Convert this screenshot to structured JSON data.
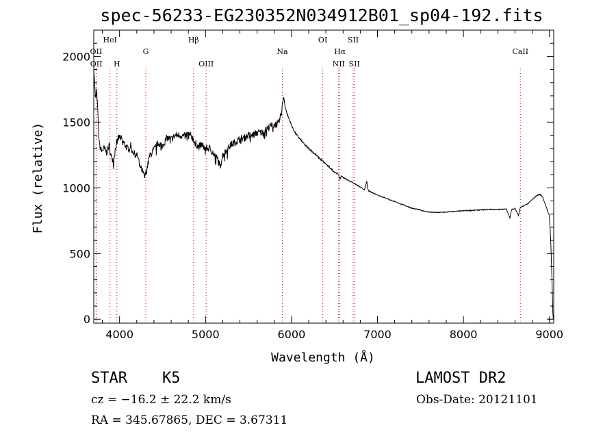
{
  "title": "spec-56233-EG230352N034912B01_sp04-192.fits",
  "info": {
    "class": "STAR",
    "subclass": "K5",
    "survey": "LAMOST DR2",
    "cz": "cz = −16.2 ± 22.2 km/s",
    "obs_date": "Obs-Date: 20121101",
    "radec": "RA = 345.67865, DEC =   3.67311"
  },
  "chart_data": {
    "type": "line",
    "xlabel": "Wavelength (Å)",
    "ylabel": "Flux (relative)",
    "xlim": [
      3700,
      9050
    ],
    "ylim": [
      -30,
      2200
    ],
    "xticks": [
      4000,
      5000,
      6000,
      7000,
      8000,
      9000
    ],
    "yticks": [
      0,
      500,
      1000,
      1500,
      2000
    ],
    "grid": false,
    "line_color": "#000000",
    "marker_color": "#cc0000",
    "lines": [
      {
        "label": "OII",
        "x": 3727,
        "row": "upper"
      },
      {
        "label": "OII",
        "x": 3729,
        "row": "lower"
      },
      {
        "label": "HeI",
        "x": 3889,
        "row": "top"
      },
      {
        "label": "H",
        "x": 3969,
        "row": "lower"
      },
      {
        "label": "G",
        "x": 4305,
        "row": "upper"
      },
      {
        "label": "Hβ",
        "x": 4861,
        "row": "top"
      },
      {
        "label": "OIII",
        "x": 5007,
        "row": "lower"
      },
      {
        "label": "Na",
        "x": 5893,
        "row": "upper"
      },
      {
        "label": "OI",
        "x": 6364,
        "row": "top"
      },
      {
        "label": "Hα",
        "x": 6563,
        "row": "upper"
      },
      {
        "label": "NII",
        "x": 6548,
        "row": "lower"
      },
      {
        "label": "SII",
        "x": 6717,
        "row": "top"
      },
      {
        "label": "SII",
        "x": 6731,
        "row": "lower"
      },
      {
        "label": "CaII",
        "x": 8662,
        "row": "upper"
      }
    ],
    "anchors": [
      [
        3700,
        1920
      ],
      [
        3710,
        1780
      ],
      [
        3720,
        1680
      ],
      [
        3735,
        1730
      ],
      [
        3745,
        1600
      ],
      [
        3755,
        1450
      ],
      [
        3765,
        1330
      ],
      [
        3790,
        1280
      ],
      [
        3820,
        1300
      ],
      [
        3850,
        1270
      ],
      [
        3880,
        1320
      ],
      [
        3900,
        1240
      ],
      [
        3930,
        1210
      ],
      [
        3960,
        1330
      ],
      [
        3985,
        1380
      ],
      [
        4010,
        1390
      ],
      [
        4050,
        1340
      ],
      [
        4090,
        1300
      ],
      [
        4130,
        1320
      ],
      [
        4170,
        1260
      ],
      [
        4210,
        1240
      ],
      [
        4250,
        1150
      ],
      [
        4290,
        1080
      ],
      [
        4310,
        1120
      ],
      [
        4350,
        1240
      ],
      [
        4400,
        1290
      ],
      [
        4450,
        1340
      ],
      [
        4500,
        1320
      ],
      [
        4550,
        1380
      ],
      [
        4600,
        1370
      ],
      [
        4650,
        1400
      ],
      [
        4700,
        1400
      ],
      [
        4750,
        1390
      ],
      [
        4800,
        1410
      ],
      [
        4850,
        1380
      ],
      [
        4880,
        1340
      ],
      [
        4920,
        1310
      ],
      [
        4960,
        1330
      ],
      [
        5000,
        1300
      ],
      [
        5050,
        1300
      ],
      [
        5100,
        1250
      ],
      [
        5140,
        1220
      ],
      [
        5170,
        1160
      ],
      [
        5200,
        1250
      ],
      [
        5250,
        1290
      ],
      [
        5300,
        1330
      ],
      [
        5350,
        1350
      ],
      [
        5400,
        1370
      ],
      [
        5450,
        1380
      ],
      [
        5500,
        1400
      ],
      [
        5550,
        1400
      ],
      [
        5600,
        1420
      ],
      [
        5650,
        1420
      ],
      [
        5700,
        1440
      ],
      [
        5750,
        1470
      ],
      [
        5800,
        1480
      ],
      [
        5850,
        1490
      ],
      [
        5880,
        1560
      ],
      [
        5900,
        1650
      ],
      [
        5910,
        1690
      ],
      [
        5925,
        1620
      ],
      [
        5950,
        1560
      ],
      [
        5980,
        1510
      ],
      [
        6010,
        1460
      ],
      [
        6050,
        1410
      ],
      [
        6100,
        1370
      ],
      [
        6150,
        1330
      ],
      [
        6200,
        1300
      ],
      [
        6250,
        1270
      ],
      [
        6300,
        1240
      ],
      [
        6350,
        1210
      ],
      [
        6400,
        1180
      ],
      [
        6450,
        1150
      ],
      [
        6500,
        1120
      ],
      [
        6550,
        1100
      ],
      [
        6563,
        1060
      ],
      [
        6580,
        1090
      ],
      [
        6600,
        1080
      ],
      [
        6650,
        1060
      ],
      [
        6700,
        1045
      ],
      [
        6750,
        1025
      ],
      [
        6800,
        1005
      ],
      [
        6850,
        985
      ],
      [
        6875,
        1050
      ],
      [
        6890,
        985
      ],
      [
        6900,
        975
      ],
      [
        6950,
        960
      ],
      [
        7000,
        945
      ],
      [
        7100,
        920
      ],
      [
        7200,
        895
      ],
      [
        7300,
        870
      ],
      [
        7400,
        845
      ],
      [
        7500,
        830
      ],
      [
        7600,
        815
      ],
      [
        7700,
        812
      ],
      [
        7800,
        815
      ],
      [
        7900,
        820
      ],
      [
        8000,
        825
      ],
      [
        8100,
        828
      ],
      [
        8200,
        832
      ],
      [
        8300,
        835
      ],
      [
        8400,
        835
      ],
      [
        8500,
        838
      ],
      [
        8540,
        770
      ],
      [
        8560,
        835
      ],
      [
        8600,
        842
      ],
      [
        8640,
        790
      ],
      [
        8662,
        848
      ],
      [
        8700,
        862
      ],
      [
        8750,
        880
      ],
      [
        8800,
        910
      ],
      [
        8850,
        940
      ],
      [
        8890,
        950
      ],
      [
        8920,
        930
      ],
      [
        8950,
        880
      ],
      [
        8980,
        820
      ],
      [
        9000,
        790
      ],
      [
        9015,
        600
      ],
      [
        9030,
        300
      ],
      [
        9040,
        50
      ],
      [
        9045,
        0
      ]
    ]
  }
}
